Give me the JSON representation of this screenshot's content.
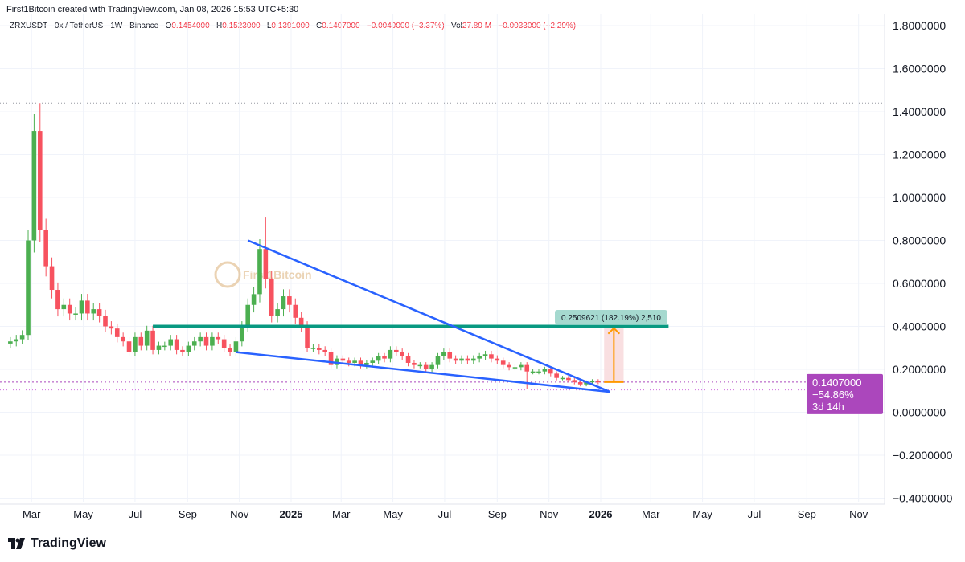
{
  "credit": "First1Bitcoin created with TradingView.com, Jan 08, 2026 15:53 UTC+5:30",
  "legend": {
    "symbol": "ZRXUSDT · 0x / TetherUS · 1W · Binance",
    "o_label": "O",
    "o": "0.1454000",
    "h_label": "H",
    "h": "0.1523000",
    "l_label": "L",
    "l": "0.1391000",
    "c_label": "C",
    "c": "0.1407000",
    "change": "−0.0049000 (−3.37%)",
    "vol_label": "Vol",
    "vol": "27.89 M",
    "vol_change": "−0.0033000 (−2.29%)"
  },
  "watermark": "First1Bitcoin",
  "footer": {
    "brand": "TradingView"
  },
  "colors": {
    "up": "#4caf50",
    "down": "#f7525f",
    "trendline": "#2962ff",
    "resistance": "#089981",
    "price_tag": "#ab47bc",
    "measure_arrow": "#ff9800",
    "measure_fill": "#f8d7da"
  },
  "price_tag": {
    "price": "0.1407000",
    "change": "−54.86%",
    "countdown": "3d 14h"
  },
  "measure_label": "0.2509621 (182.19%) 2,510",
  "chart_data": {
    "type": "candlestick",
    "interval": "1W",
    "x_start": "2024-02-05",
    "y_ticks": [
      "1.8000000",
      "1.6000000",
      "1.4000000",
      "1.2000000",
      "1.0000000",
      "0.8000000",
      "0.6000000",
      "0.4000000",
      "0.2000000",
      "0.0000000",
      "−0.2000000",
      "−0.4000000"
    ],
    "y_tick_values": [
      1.8,
      1.6,
      1.4,
      1.2,
      1.0,
      0.8,
      0.6,
      0.4,
      0.2,
      0,
      -0.2,
      -0.4
    ],
    "ylim": [
      -0.4,
      1.8
    ],
    "x_ticks": [
      {
        "label": "Mar",
        "date": "2024-03-01"
      },
      {
        "label": "May",
        "date": "2024-05-01"
      },
      {
        "label": "Jul",
        "date": "2024-07-01"
      },
      {
        "label": "Sep",
        "date": "2024-09-01"
      },
      {
        "label": "Nov",
        "date": "2024-11-01"
      },
      {
        "label": "2025",
        "date": "2025-01-01",
        "bold": true
      },
      {
        "label": "Mar",
        "date": "2025-03-01"
      },
      {
        "label": "May",
        "date": "2025-05-01"
      },
      {
        "label": "Jul",
        "date": "2025-07-01"
      },
      {
        "label": "Sep",
        "date": "2025-09-01"
      },
      {
        "label": "Nov",
        "date": "2025-11-01"
      },
      {
        "label": "2026",
        "date": "2026-01-01",
        "bold": true
      },
      {
        "label": "Mar",
        "date": "2026-03-01"
      },
      {
        "label": "May",
        "date": "2026-05-01"
      },
      {
        "label": "Jul",
        "date": "2026-07-01"
      },
      {
        "label": "Sep",
        "date": "2026-09-01"
      },
      {
        "label": "Nov",
        "date": "2026-11-01"
      }
    ],
    "xlim": [
      "2024-01-31",
      "2026-12-10"
    ],
    "first_open": 0.32,
    "closes": [
      0.33,
      0.34,
      0.36,
      0.8,
      1.31,
      0.85,
      0.68,
      0.57,
      0.48,
      0.5,
      0.46,
      0.46,
      0.52,
      0.46,
      0.48,
      0.45,
      0.4,
      0.39,
      0.35,
      0.33,
      0.28,
      0.35,
      0.31,
      0.38,
      0.29,
      0.31,
      0.31,
      0.34,
      0.29,
      0.28,
      0.31,
      0.33,
      0.35,
      0.31,
      0.35,
      0.34,
      0.3,
      0.28,
      0.33,
      0.4,
      0.5,
      0.55,
      0.76,
      0.62,
      0.45,
      0.48,
      0.54,
      0.5,
      0.44,
      0.4,
      0.3,
      0.3,
      0.29,
      0.28,
      0.22,
      0.25,
      0.24,
      0.23,
      0.24,
      0.22,
      0.23,
      0.24,
      0.26,
      0.25,
      0.29,
      0.28,
      0.26,
      0.23,
      0.22,
      0.22,
      0.2,
      0.22,
      0.26,
      0.28,
      0.25,
      0.24,
      0.25,
      0.24,
      0.25,
      0.26,
      0.27,
      0.25,
      0.24,
      0.22,
      0.21,
      0.21,
      0.22,
      0.19,
      0.19,
      0.19,
      0.2,
      0.18,
      0.16,
      0.16,
      0.15,
      0.14,
      0.13,
      0.14,
      0.1454,
      0.1407
    ],
    "notable_highs": [
      {
        "date": "2024-03-11",
        "value": 1.44
      },
      {
        "date": "2024-12-02",
        "value": 0.91
      }
    ],
    "notable_lows": [
      {
        "date": "2025-10-06",
        "value": 0.11
      }
    ],
    "drawings": {
      "upper_trendline": {
        "from": [
          "2024-11-11",
          0.8
        ],
        "to": [
          "2026-01-12",
          0.095
        ]
      },
      "lower_trendline": {
        "from": [
          "2024-10-28",
          0.28
        ],
        "to": [
          "2026-01-12",
          0.095
        ]
      },
      "resistance": {
        "value": 0.4,
        "from": "2024-07-22",
        "to": "2026-03-22"
      },
      "ath_line": 1.44,
      "current_price_line": 0.1407,
      "low_line": 0.104,
      "measure": {
        "from_date": "2026-01-05",
        "to_date": "2026-01-28",
        "from": 0.1407,
        "to": 0.3917
      }
    }
  }
}
